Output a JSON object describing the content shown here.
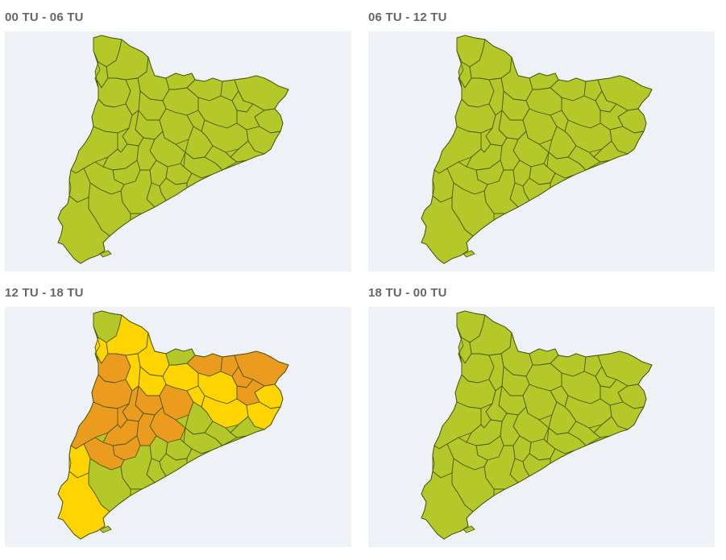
{
  "colors": {
    "background": "#eef1f6",
    "level_green": "#b4c82a",
    "level_yellow": "#ffd400",
    "level_orange": "#eb9b1e",
    "border": "#4e5a10"
  },
  "panels": [
    {
      "title": "00 TU - 06 TU",
      "alerts": "none"
    },
    {
      "title": "06 TU - 12 TU",
      "alerts": "none"
    },
    {
      "title": "12 TU - 18 TU",
      "alerts": "yellow-and-orange"
    },
    {
      "title": "18 TU - 00 TU",
      "alerts": "none"
    }
  ]
}
